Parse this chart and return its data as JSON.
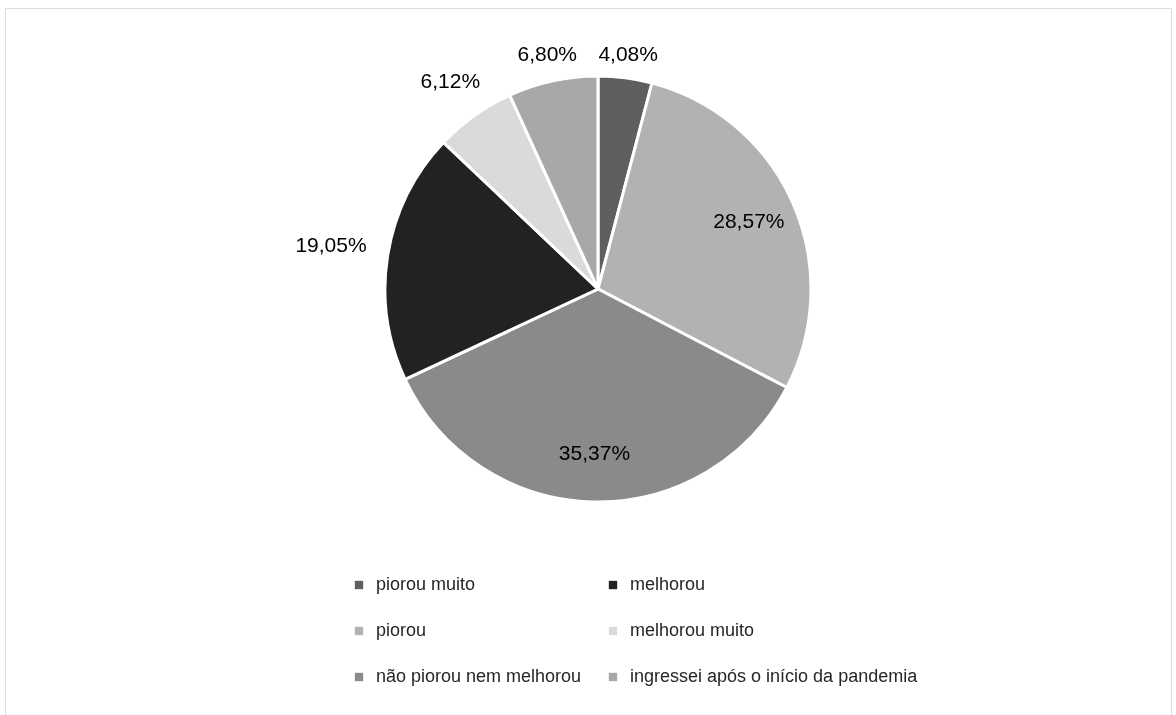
{
  "chart_data": {
    "type": "pie",
    "categories": [
      "piorou muito",
      "piorou",
      "não piorou nem melhorou",
      "melhorou",
      "melhorou muito",
      "ingressei após o início da pandemia"
    ],
    "values": [
      4.08,
      28.57,
      35.37,
      19.05,
      6.12,
      6.8
    ],
    "colors": [
      "#5f5f5f",
      "#b2b2b2",
      "#8a8a8a",
      "#222222",
      "#dadada",
      "#a8a8a8"
    ],
    "value_labels": [
      "4,08%",
      "28,57%",
      "35,37%",
      "19,05%",
      "6,12%",
      "6,80%"
    ],
    "legend": "bottom"
  }
}
